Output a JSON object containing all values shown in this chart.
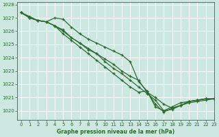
{
  "title": "Graphe pression niveau de la mer (hPa)",
  "bg_color": "#cce8e0",
  "grid_color": "#ffffff",
  "line_color": "#2d6a2d",
  "xlim": [
    -0.5,
    23
  ],
  "ylim": [
    1019.3,
    1028.2
  ],
  "yticks": [
    1020,
    1021,
    1022,
    1023,
    1024,
    1025,
    1026,
    1027,
    1028
  ],
  "xticks": [
    0,
    1,
    2,
    3,
    4,
    5,
    6,
    7,
    8,
    9,
    10,
    11,
    12,
    13,
    14,
    15,
    16,
    17,
    18,
    19,
    20,
    21,
    22,
    23
  ],
  "series": [
    [
      1027.4,
      1027.0,
      1026.8,
      1026.7,
      1027.0,
      1026.9,
      1026.3,
      1025.8,
      1025.4,
      1025.1,
      1024.8,
      1024.5,
      1024.2,
      1023.7,
      1022.2,
      1021.5,
      1020.3,
      1020.0,
      1020.3,
      1020.6,
      1020.7,
      1020.8,
      1020.9,
      1020.9
    ],
    [
      1027.4,
      1027.0,
      1026.8,
      1026.7,
      1026.4,
      1026.1,
      1025.5,
      1025.1,
      1024.7,
      1024.3,
      1023.7,
      1023.2,
      1022.8,
      1022.3,
      1021.8,
      1021.3,
      1020.8,
      1020.0,
      1020.1,
      1020.4,
      1020.6,
      1020.7,
      1020.8,
      1020.9
    ],
    [
      1027.4,
      1027.0,
      1026.8,
      1026.7,
      1026.4,
      1025.8,
      1025.3,
      1024.8,
      1024.3,
      1023.8,
      1023.3,
      1022.8,
      1022.3,
      1021.8,
      1021.4,
      1021.5,
      1020.5,
      1019.9,
      1020.2,
      1020.4,
      1020.7,
      1020.8,
      1020.9,
      1020.9
    ],
    [
      1027.4,
      1027.1,
      1026.8,
      1026.7,
      1026.4,
      1026.0,
      1025.5,
      1025.1,
      1024.6,
      1024.3,
      1023.9,
      1023.5,
      1023.0,
      1022.6,
      1022.3,
      1021.4,
      1021.0,
      1020.5,
      1020.2,
      1020.4,
      1020.7,
      1020.8,
      1020.9,
      1020.9
    ]
  ]
}
